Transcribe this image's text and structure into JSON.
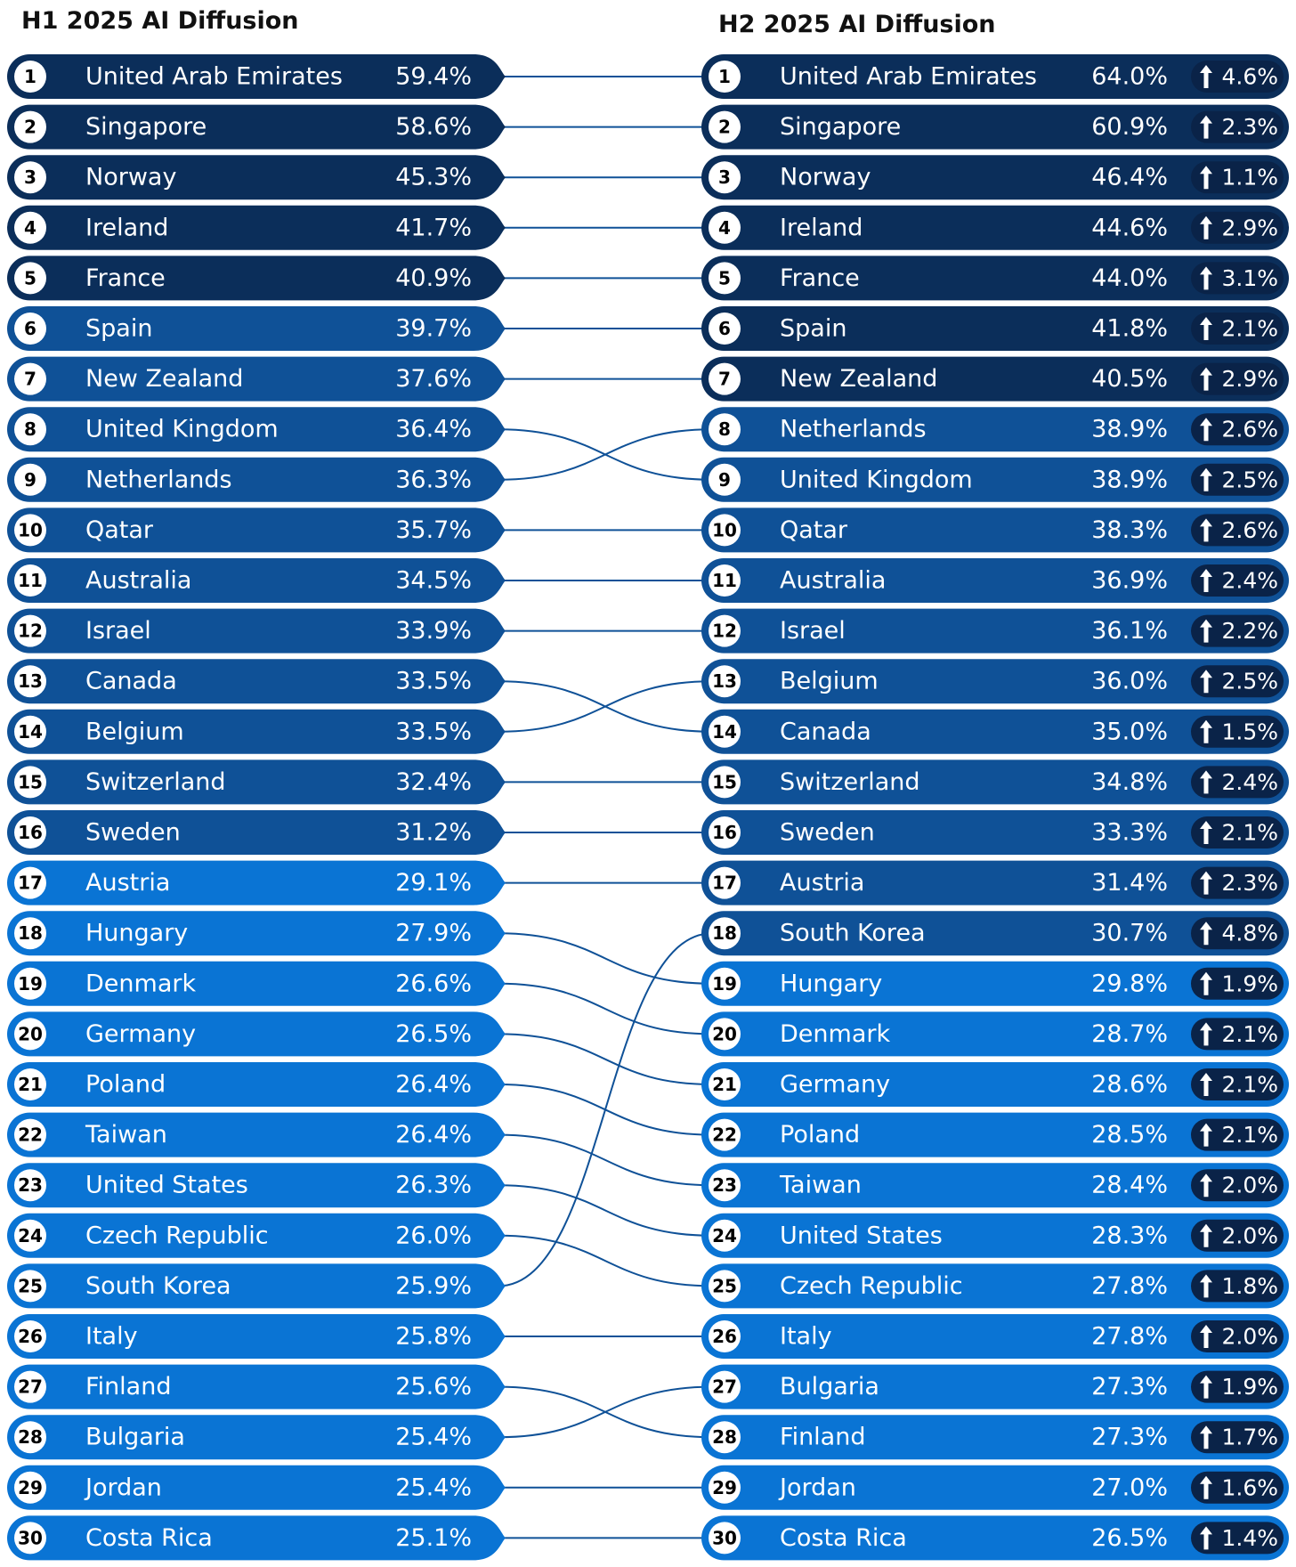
{
  "titles": {
    "left": "H1 2025 AI Diffusion",
    "right": "H2 2025 AI Diffusion"
  },
  "colors": {
    "tier1": "#0b2e5a",
    "tier2": "#0f5197",
    "tier3": "#0a74d4",
    "badge": "#0a2348",
    "connector": "#0f5197",
    "text": "#ffffff"
  },
  "chart_data": {
    "type": "table",
    "h1": [
      {
        "rank": "1",
        "country": "United Arab Emirates",
        "value": "59.4%"
      },
      {
        "rank": "2",
        "country": "Singapore",
        "value": "58.6%"
      },
      {
        "rank": "3",
        "country": "Norway",
        "value": "45.3%"
      },
      {
        "rank": "4",
        "country": "Ireland",
        "value": "41.7%"
      },
      {
        "rank": "5",
        "country": "France",
        "value": "40.9%"
      },
      {
        "rank": "6",
        "country": "Spain",
        "value": "39.7%"
      },
      {
        "rank": "7",
        "country": "New Zealand",
        "value": "37.6%"
      },
      {
        "rank": "8",
        "country": "United Kingdom",
        "value": "36.4%"
      },
      {
        "rank": "9",
        "country": "Netherlands",
        "value": "36.3%"
      },
      {
        "rank": "10",
        "country": "Qatar",
        "value": "35.7%"
      },
      {
        "rank": "11",
        "country": "Australia",
        "value": "34.5%"
      },
      {
        "rank": "12",
        "country": "Israel",
        "value": "33.9%"
      },
      {
        "rank": "13",
        "country": "Canada",
        "value": "33.5%"
      },
      {
        "rank": "14",
        "country": "Belgium",
        "value": "33.5%"
      },
      {
        "rank": "15",
        "country": "Switzerland",
        "value": "32.4%"
      },
      {
        "rank": "16",
        "country": "Sweden",
        "value": "31.2%"
      },
      {
        "rank": "17",
        "country": "Austria",
        "value": "29.1%"
      },
      {
        "rank": "18",
        "country": "Hungary",
        "value": "27.9%"
      },
      {
        "rank": "19",
        "country": "Denmark",
        "value": "26.6%"
      },
      {
        "rank": "20",
        "country": "Germany",
        "value": "26.5%"
      },
      {
        "rank": "21",
        "country": "Poland",
        "value": "26.4%"
      },
      {
        "rank": "22",
        "country": "Taiwan",
        "value": "26.4%"
      },
      {
        "rank": "23",
        "country": "United States",
        "value": "26.3%"
      },
      {
        "rank": "24",
        "country": "Czech Republic",
        "value": "26.0%"
      },
      {
        "rank": "25",
        "country": "South Korea",
        "value": "25.9%"
      },
      {
        "rank": "26",
        "country": "Italy",
        "value": "25.8%"
      },
      {
        "rank": "27",
        "country": "Finland",
        "value": "25.6%"
      },
      {
        "rank": "28",
        "country": "Bulgaria",
        "value": "25.4%"
      },
      {
        "rank": "29",
        "country": "Jordan",
        "value": "25.4%"
      },
      {
        "rank": "30",
        "country": "Costa Rica",
        "value": "25.1%"
      }
    ],
    "h2": [
      {
        "rank": "1",
        "country": "United Arab Emirates",
        "value": "64.0%",
        "change": "4.6%"
      },
      {
        "rank": "2",
        "country": "Singapore",
        "value": "60.9%",
        "change": "2.3%"
      },
      {
        "rank": "3",
        "country": "Norway",
        "value": "46.4%",
        "change": "1.1%"
      },
      {
        "rank": "4",
        "country": "Ireland",
        "value": "44.6%",
        "change": "2.9%"
      },
      {
        "rank": "5",
        "country": "France",
        "value": "44.0%",
        "change": "3.1%"
      },
      {
        "rank": "6",
        "country": "Spain",
        "value": "41.8%",
        "change": "2.1%"
      },
      {
        "rank": "7",
        "country": "New Zealand",
        "value": "40.5%",
        "change": "2.9%"
      },
      {
        "rank": "8",
        "country": "Netherlands",
        "value": "38.9%",
        "change": "2.6%"
      },
      {
        "rank": "9",
        "country": "United Kingdom",
        "value": "38.9%",
        "change": "2.5%"
      },
      {
        "rank": "10",
        "country": "Qatar",
        "value": "38.3%",
        "change": "2.6%"
      },
      {
        "rank": "11",
        "country": "Australia",
        "value": "36.9%",
        "change": "2.4%"
      },
      {
        "rank": "12",
        "country": "Israel",
        "value": "36.1%",
        "change": "2.2%"
      },
      {
        "rank": "13",
        "country": "Belgium",
        "value": "36.0%",
        "change": "2.5%"
      },
      {
        "rank": "14",
        "country": "Canada",
        "value": "35.0%",
        "change": "1.5%"
      },
      {
        "rank": "15",
        "country": "Switzerland",
        "value": "34.8%",
        "change": "2.4%"
      },
      {
        "rank": "16",
        "country": "Sweden",
        "value": "33.3%",
        "change": "2.1%"
      },
      {
        "rank": "17",
        "country": "Austria",
        "value": "31.4%",
        "change": "2.3%"
      },
      {
        "rank": "18",
        "country": "South Korea",
        "value": "30.7%",
        "change": "4.8%"
      },
      {
        "rank": "19",
        "country": "Hungary",
        "value": "29.8%",
        "change": "1.9%"
      },
      {
        "rank": "20",
        "country": "Denmark",
        "value": "28.7%",
        "change": "2.1%"
      },
      {
        "rank": "21",
        "country": "Germany",
        "value": "28.6%",
        "change": "2.1%"
      },
      {
        "rank": "22",
        "country": "Poland",
        "value": "28.5%",
        "change": "2.1%"
      },
      {
        "rank": "23",
        "country": "Taiwan",
        "value": "28.4%",
        "change": "2.0%"
      },
      {
        "rank": "24",
        "country": "United States",
        "value": "28.3%",
        "change": "2.0%"
      },
      {
        "rank": "25",
        "country": "Czech Republic",
        "value": "27.8%",
        "change": "1.8%"
      },
      {
        "rank": "26",
        "country": "Italy",
        "value": "27.8%",
        "change": "2.0%"
      },
      {
        "rank": "27",
        "country": "Bulgaria",
        "value": "27.3%",
        "change": "1.9%"
      },
      {
        "rank": "28",
        "country": "Finland",
        "value": "27.3%",
        "change": "1.7%"
      },
      {
        "rank": "29",
        "country": "Jordan",
        "value": "27.0%",
        "change": "1.6%"
      },
      {
        "rank": "30",
        "country": "Costa Rica",
        "value": "26.5%",
        "change": "1.4%"
      }
    ]
  }
}
